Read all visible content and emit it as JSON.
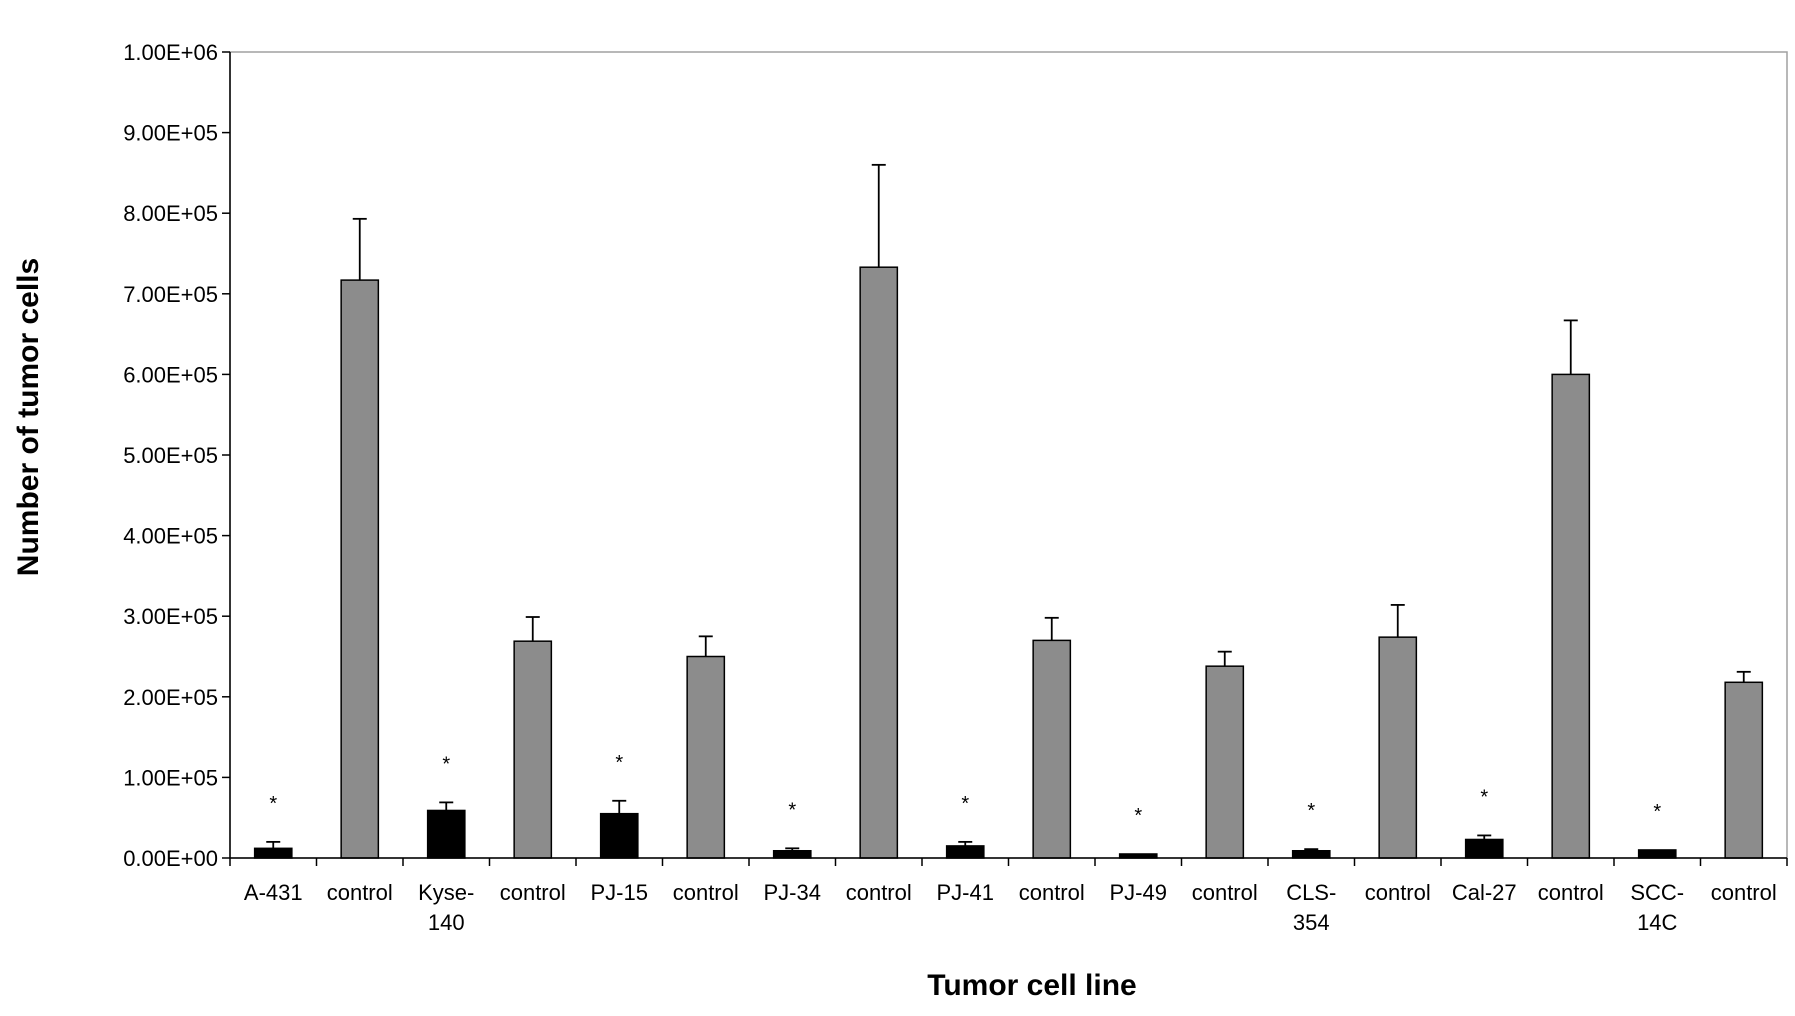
{
  "chart_data": {
    "type": "bar",
    "title": "",
    "xlabel": "Tumor cell line",
    "ylabel": "Number of tumor cells",
    "ylim": [
      0,
      1000000
    ],
    "yticks": [
      0,
      100000,
      200000,
      300000,
      400000,
      500000,
      600000,
      700000,
      800000,
      900000,
      1000000
    ],
    "ytick_labels": [
      "0.00E+00",
      "1.00E+05",
      "2.00E+05",
      "3.00E+05",
      "4.00E+05",
      "5.00E+05",
      "6.00E+05",
      "7.00E+05",
      "8.00E+05",
      "9.00E+05",
      "1.00E+06"
    ],
    "grid": false,
    "legend": "none",
    "categories": [
      [
        "A-431"
      ],
      [
        "control"
      ],
      [
        "Kyse-",
        "140"
      ],
      [
        "control"
      ],
      [
        "PJ-15"
      ],
      [
        "control"
      ],
      [
        "PJ-34"
      ],
      [
        "control"
      ],
      [
        "PJ-41"
      ],
      [
        "control"
      ],
      [
        "PJ-49"
      ],
      [
        "control"
      ],
      [
        "CLS-",
        "354"
      ],
      [
        "control"
      ],
      [
        "Cal-27"
      ],
      [
        "control"
      ],
      [
        "SCC-",
        "14C"
      ],
      [
        "control"
      ]
    ],
    "values": [
      12000,
      717000,
      59000,
      269000,
      55000,
      250000,
      9000,
      733000,
      15000,
      270000,
      5000,
      238000,
      9000,
      274000,
      23000,
      600000,
      10000,
      218000
    ],
    "errors": [
      8000,
      76000,
      10000,
      30000,
      16000,
      25000,
      3000,
      127000,
      5000,
      28000,
      0,
      18000,
      2000,
      40000,
      5000,
      67000,
      0,
      13000
    ],
    "bar_colors": [
      "#000000",
      "#8c8c8c",
      "#000000",
      "#8c8c8c",
      "#000000",
      "#8c8c8c",
      "#000000",
      "#8c8c8c",
      "#000000",
      "#8c8c8c",
      "#000000",
      "#8c8c8c",
      "#000000",
      "#8c8c8c",
      "#000000",
      "#8c8c8c",
      "#000000",
      "#8c8c8c"
    ],
    "annotations": [
      "*",
      "",
      "*",
      "",
      "*",
      "",
      "*",
      "",
      "*",
      "",
      "*",
      "",
      "*",
      "",
      "*",
      "",
      "*",
      ""
    ]
  }
}
